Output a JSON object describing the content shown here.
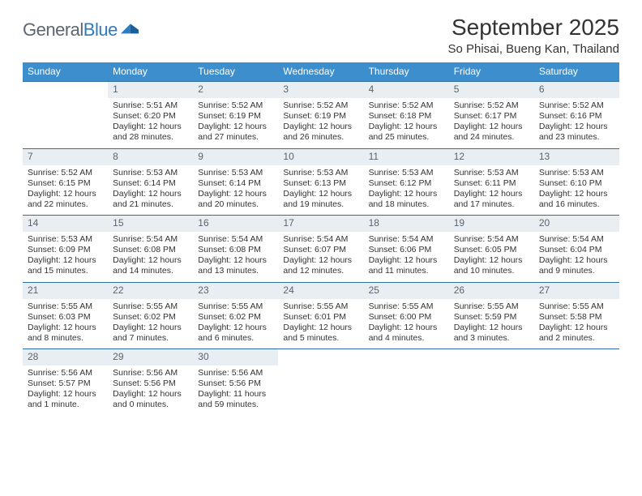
{
  "logo": {
    "word1": "General",
    "word2": "Blue"
  },
  "title": "September 2025",
  "location": "So Phisai, Bueng Kan, Thailand",
  "colors": {
    "header_bg": "#3d8ecd",
    "row_border": "#2f6ea3",
    "daynum_bg": "#e9eef2",
    "text": "#333333",
    "logo_gray": "#5c6670",
    "logo_blue": "#2f7bbf"
  },
  "days_of_week": [
    "Sunday",
    "Monday",
    "Tuesday",
    "Wednesday",
    "Thursday",
    "Friday",
    "Saturday"
  ],
  "weeks": [
    [
      null,
      {
        "n": "1",
        "sr": "Sunrise: 5:51 AM",
        "ss": "Sunset: 6:20 PM",
        "dl": "Daylight: 12 hours and 28 minutes."
      },
      {
        "n": "2",
        "sr": "Sunrise: 5:52 AM",
        "ss": "Sunset: 6:19 PM",
        "dl": "Daylight: 12 hours and 27 minutes."
      },
      {
        "n": "3",
        "sr": "Sunrise: 5:52 AM",
        "ss": "Sunset: 6:19 PM",
        "dl": "Daylight: 12 hours and 26 minutes."
      },
      {
        "n": "4",
        "sr": "Sunrise: 5:52 AM",
        "ss": "Sunset: 6:18 PM",
        "dl": "Daylight: 12 hours and 25 minutes."
      },
      {
        "n": "5",
        "sr": "Sunrise: 5:52 AM",
        "ss": "Sunset: 6:17 PM",
        "dl": "Daylight: 12 hours and 24 minutes."
      },
      {
        "n": "6",
        "sr": "Sunrise: 5:52 AM",
        "ss": "Sunset: 6:16 PM",
        "dl": "Daylight: 12 hours and 23 minutes."
      }
    ],
    [
      {
        "n": "7",
        "sr": "Sunrise: 5:52 AM",
        "ss": "Sunset: 6:15 PM",
        "dl": "Daylight: 12 hours and 22 minutes."
      },
      {
        "n": "8",
        "sr": "Sunrise: 5:53 AM",
        "ss": "Sunset: 6:14 PM",
        "dl": "Daylight: 12 hours and 21 minutes."
      },
      {
        "n": "9",
        "sr": "Sunrise: 5:53 AM",
        "ss": "Sunset: 6:14 PM",
        "dl": "Daylight: 12 hours and 20 minutes."
      },
      {
        "n": "10",
        "sr": "Sunrise: 5:53 AM",
        "ss": "Sunset: 6:13 PM",
        "dl": "Daylight: 12 hours and 19 minutes."
      },
      {
        "n": "11",
        "sr": "Sunrise: 5:53 AM",
        "ss": "Sunset: 6:12 PM",
        "dl": "Daylight: 12 hours and 18 minutes."
      },
      {
        "n": "12",
        "sr": "Sunrise: 5:53 AM",
        "ss": "Sunset: 6:11 PM",
        "dl": "Daylight: 12 hours and 17 minutes."
      },
      {
        "n": "13",
        "sr": "Sunrise: 5:53 AM",
        "ss": "Sunset: 6:10 PM",
        "dl": "Daylight: 12 hours and 16 minutes."
      }
    ],
    [
      {
        "n": "14",
        "sr": "Sunrise: 5:53 AM",
        "ss": "Sunset: 6:09 PM",
        "dl": "Daylight: 12 hours and 15 minutes."
      },
      {
        "n": "15",
        "sr": "Sunrise: 5:54 AM",
        "ss": "Sunset: 6:08 PM",
        "dl": "Daylight: 12 hours and 14 minutes."
      },
      {
        "n": "16",
        "sr": "Sunrise: 5:54 AM",
        "ss": "Sunset: 6:08 PM",
        "dl": "Daylight: 12 hours and 13 minutes."
      },
      {
        "n": "17",
        "sr": "Sunrise: 5:54 AM",
        "ss": "Sunset: 6:07 PM",
        "dl": "Daylight: 12 hours and 12 minutes."
      },
      {
        "n": "18",
        "sr": "Sunrise: 5:54 AM",
        "ss": "Sunset: 6:06 PM",
        "dl": "Daylight: 12 hours and 11 minutes."
      },
      {
        "n": "19",
        "sr": "Sunrise: 5:54 AM",
        "ss": "Sunset: 6:05 PM",
        "dl": "Daylight: 12 hours and 10 minutes."
      },
      {
        "n": "20",
        "sr": "Sunrise: 5:54 AM",
        "ss": "Sunset: 6:04 PM",
        "dl": "Daylight: 12 hours and 9 minutes."
      }
    ],
    [
      {
        "n": "21",
        "sr": "Sunrise: 5:55 AM",
        "ss": "Sunset: 6:03 PM",
        "dl": "Daylight: 12 hours and 8 minutes."
      },
      {
        "n": "22",
        "sr": "Sunrise: 5:55 AM",
        "ss": "Sunset: 6:02 PM",
        "dl": "Daylight: 12 hours and 7 minutes."
      },
      {
        "n": "23",
        "sr": "Sunrise: 5:55 AM",
        "ss": "Sunset: 6:02 PM",
        "dl": "Daylight: 12 hours and 6 minutes."
      },
      {
        "n": "24",
        "sr": "Sunrise: 5:55 AM",
        "ss": "Sunset: 6:01 PM",
        "dl": "Daylight: 12 hours and 5 minutes."
      },
      {
        "n": "25",
        "sr": "Sunrise: 5:55 AM",
        "ss": "Sunset: 6:00 PM",
        "dl": "Daylight: 12 hours and 4 minutes."
      },
      {
        "n": "26",
        "sr": "Sunrise: 5:55 AM",
        "ss": "Sunset: 5:59 PM",
        "dl": "Daylight: 12 hours and 3 minutes."
      },
      {
        "n": "27",
        "sr": "Sunrise: 5:55 AM",
        "ss": "Sunset: 5:58 PM",
        "dl": "Daylight: 12 hours and 2 minutes."
      }
    ],
    [
      {
        "n": "28",
        "sr": "Sunrise: 5:56 AM",
        "ss": "Sunset: 5:57 PM",
        "dl": "Daylight: 12 hours and 1 minute."
      },
      {
        "n": "29",
        "sr": "Sunrise: 5:56 AM",
        "ss": "Sunset: 5:56 PM",
        "dl": "Daylight: 12 hours and 0 minutes."
      },
      {
        "n": "30",
        "sr": "Sunrise: 5:56 AM",
        "ss": "Sunset: 5:56 PM",
        "dl": "Daylight: 11 hours and 59 minutes."
      },
      null,
      null,
      null,
      null
    ]
  ]
}
